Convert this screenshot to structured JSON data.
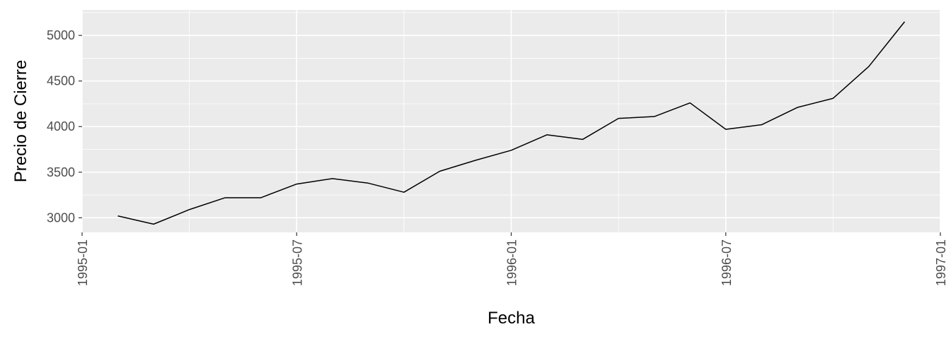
{
  "chart_data": {
    "type": "line",
    "xlabel": "Fecha",
    "ylabel": "Precio de Cierre",
    "x_ticks": [
      "1995-01",
      "1995-07",
      "1996-01",
      "1996-07",
      "1997-01"
    ],
    "y_ticks": [
      3000,
      3500,
      4000,
      4500,
      5000
    ],
    "xlim": [
      "1995-01",
      "1997-01"
    ],
    "ylim": [
      2840,
      5280
    ],
    "grid": true,
    "legend": "none",
    "x": [
      "1995-02",
      "1995-03",
      "1995-04",
      "1995-05",
      "1995-06",
      "1995-07",
      "1995-08",
      "1995-09",
      "1995-10",
      "1995-11",
      "1995-12",
      "1996-01",
      "1996-02",
      "1996-03",
      "1996-04",
      "1996-05",
      "1996-06",
      "1996-07",
      "1996-08",
      "1996-09",
      "1996-10",
      "1996-11",
      "1996-12"
    ],
    "series": [
      {
        "values": [
          3020,
          2930,
          3090,
          3220,
          3220,
          3370,
          3430,
          3380,
          3280,
          3510,
          3630,
          3740,
          3910,
          3860,
          4090,
          4110,
          4260,
          3970,
          4020,
          4210,
          4310,
          4660,
          5150
        ]
      }
    ],
    "colors": {
      "panel": "#ebebeb",
      "grid": "#ffffff",
      "line": "#000000",
      "tick": "#333333"
    }
  }
}
